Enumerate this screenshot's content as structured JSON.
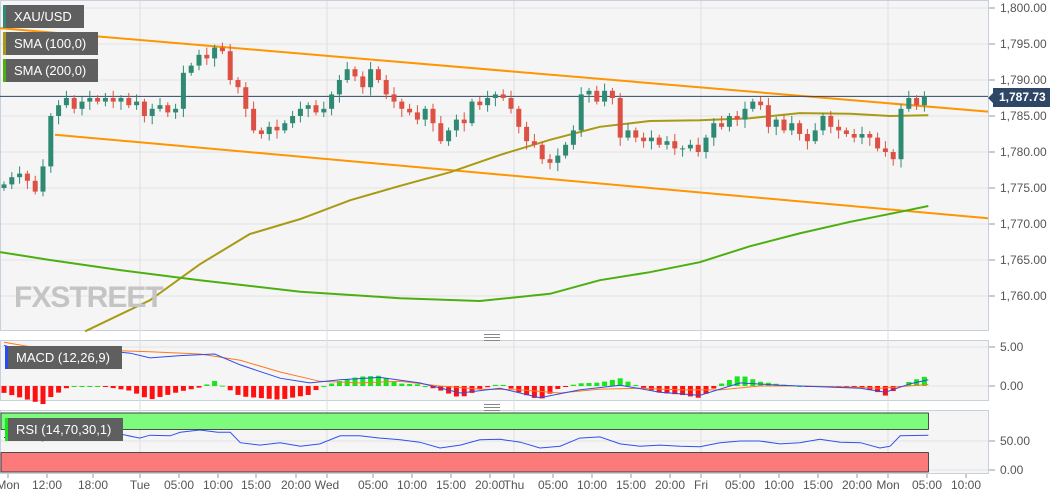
{
  "legend": {
    "symbol": "XAU/USD",
    "sma100": "SMA (100,0)",
    "sma200": "SMA (200,0)",
    "macd": "MACD (12,26,9)",
    "rsi": "RSI (14,70,30,1)"
  },
  "watermark": "FXSTREET",
  "last_price": "1,787.73",
  "colors": {
    "up": "#2f8a73",
    "down": "#dd5145",
    "channel": "#ff9500",
    "sma100": "#a89a14",
    "sma200": "#4caf10",
    "macd": "#2b4bef",
    "signal": "#ff7a1a",
    "hist_up": "#19e619",
    "hist_down": "#ff1010",
    "rsi": "#3050f0",
    "overbought": "#7dfb7d",
    "oversold": "#fb7b7b",
    "price_tag": "#2e4766"
  },
  "price_axis": [
    "1,800.00",
    "1,795.00",
    "1,790.00",
    "1,785.00",
    "1,780.00",
    "1,775.00",
    "1,770.00",
    "1,765.00",
    "1,760.00"
  ],
  "macd_axis": [
    "5.00",
    "0.00"
  ],
  "rsi_axis": [
    "50.00",
    "0.00"
  ],
  "time_axis": [
    "Mon",
    "12:00",
    "18:00",
    "Tue",
    "05:00",
    "10:00",
    "15:00",
    "20:00",
    "Wed",
    "05:00",
    "10:00",
    "15:00",
    "20:00",
    "Thu",
    "05:00",
    "10:00",
    "15:00",
    "20:00",
    "Fri",
    "05:00",
    "10:00",
    "15:00",
    "20:00",
    "Mon",
    "05:00",
    "10:00"
  ],
  "chart_data": {
    "type": "candlestick",
    "price_range": [
      1755,
      1801
    ],
    "closes": [
      1775.5,
      1776.5,
      1777,
      1776,
      1774.5,
      1778,
      1785,
      1786.5,
      1787.5,
      1786,
      1787,
      1787.5,
      1787,
      1787.5,
      1787,
      1787.5,
      1786.5,
      1787,
      1785,
      1786,
      1786.5,
      1785.5,
      1786,
      1791,
      1792,
      1793.5,
      1793,
      1794.5,
      1794,
      1790,
      1789,
      1786,
      1783,
      1782.5,
      1783.5,
      1783,
      1784,
      1785,
      1786,
      1786.5,
      1785.5,
      1786,
      1788,
      1790,
      1791.5,
      1790.5,
      1789,
      1791.5,
      1790,
      1788,
      1787,
      1786,
      1785.5,
      1784.5,
      1786,
      1784,
      1781.5,
      1783,
      1784.5,
      1784,
      1787,
      1786.5,
      1787.5,
      1788,
      1787.5,
      1786,
      1783.5,
      1781.5,
      1781,
      1779,
      1778.5,
      1779.5,
      1781,
      1783,
      1788,
      1788.5,
      1787,
      1788.5,
      1787.5,
      1782,
      1783,
      1782,
      1781.5,
      1782,
      1781,
      1781.5,
      1780.5,
      1780.5,
      1781,
      1780,
      1782,
      1784,
      1783.5,
      1785,
      1784.5,
      1786,
      1787,
      1786.5,
      1783.5,
      1784.5,
      1783,
      1784,
      1782.5,
      1781.5,
      1783,
      1785,
      1783.5,
      1783,
      1782.5,
      1782,
      1782.5,
      1782,
      1780.5,
      1780,
      1779,
      1786,
      1787.5,
      1786.5,
      1787.73
    ],
    "last": 1787.73,
    "channel_upper": [
      1797.2,
      1785.6
    ],
    "channel_lower": [
      1782.4,
      1770.8
    ],
    "sma100": [
      [
        10.4,
        1755.1
      ],
      [
        18.7,
        1759.4
      ],
      [
        25.1,
        1764.4
      ],
      [
        31.5,
        1768.6
      ],
      [
        38,
        1770.7
      ],
      [
        44.4,
        1773.3
      ],
      [
        50.8,
        1775.3
      ],
      [
        57.2,
        1777.2
      ],
      [
        63.6,
        1779.6
      ],
      [
        70,
        1781.7
      ],
      [
        76.4,
        1783.5
      ],
      [
        82.8,
        1784.3
      ],
      [
        89.2,
        1784.4
      ],
      [
        95.6,
        1784.7
      ],
      [
        102,
        1785.4
      ],
      [
        108.5,
        1785.3
      ],
      [
        113.6,
        1785
      ],
      [
        118.5,
        1785.1
      ]
    ],
    "sma200": [
      [
        -0.5,
        1766.1
      ],
      [
        5.9,
        1765
      ],
      [
        14.9,
        1763.6
      ],
      [
        25.1,
        1762.2
      ],
      [
        38,
        1760.6
      ],
      [
        50.8,
        1759.7
      ],
      [
        61,
        1759.3
      ],
      [
        70,
        1760.3
      ],
      [
        76.4,
        1762.2
      ],
      [
        82.8,
        1763.3
      ],
      [
        89.2,
        1764.7
      ],
      [
        95.6,
        1766.9
      ],
      [
        102,
        1768.7
      ],
      [
        108.5,
        1770.3
      ],
      [
        114.9,
        1771.7
      ],
      [
        118.5,
        1772.5
      ]
    ],
    "macd": [
      [
        0,
        5.2
      ],
      [
        5,
        3.7
      ],
      [
        8.5,
        4.6
      ],
      [
        12.3,
        4.6
      ],
      [
        16.2,
        4.2
      ],
      [
        18.7,
        3.6
      ],
      [
        22.6,
        3.9
      ],
      [
        27,
        4.1
      ],
      [
        30.3,
        2.7
      ],
      [
        35.4,
        1.0
      ],
      [
        39.2,
        0.4
      ],
      [
        43.1,
        0.8
      ],
      [
        48.2,
        1.1
      ],
      [
        53.3,
        0.4
      ],
      [
        58.5,
        -0.9
      ],
      [
        63.6,
        -0.3
      ],
      [
        68.7,
        -1.5
      ],
      [
        73.8,
        -0.5
      ],
      [
        79,
        0.1
      ],
      [
        84.1,
        -0.8
      ],
      [
        89.2,
        -1.2
      ],
      [
        94.4,
        0.4
      ],
      [
        99.5,
        0.1
      ],
      [
        104.6,
        -0.1
      ],
      [
        109.8,
        -0.3
      ],
      [
        113,
        -0.8
      ],
      [
        116.2,
        0.3
      ],
      [
        118.5,
        0.8
      ]
    ],
    "signal": [
      [
        0,
        5.6
      ],
      [
        5.9,
        4.6
      ],
      [
        12.3,
        4.6
      ],
      [
        18.7,
        4.4
      ],
      [
        25.1,
        4.1
      ],
      [
        30.3,
        3.3
      ],
      [
        35.4,
        1.8
      ],
      [
        40.5,
        0.6
      ],
      [
        45.6,
        0.4
      ],
      [
        50.8,
        0.6
      ],
      [
        55.9,
        0
      ],
      [
        61,
        -0.4
      ],
      [
        66.2,
        -0.5
      ],
      [
        71.3,
        -0.9
      ],
      [
        76.4,
        -0.4
      ],
      [
        81.5,
        -0.3
      ],
      [
        86.7,
        -0.5
      ],
      [
        91.8,
        -0.5
      ],
      [
        96.9,
        0
      ],
      [
        102,
        0
      ],
      [
        107.2,
        -0.1
      ],
      [
        112.3,
        -0.3
      ],
      [
        118.5,
        0.2
      ]
    ],
    "rsi": [
      [
        0,
        56
      ],
      [
        2.6,
        57
      ],
      [
        5,
        50
      ],
      [
        6.2,
        60
      ],
      [
        7.2,
        65
      ],
      [
        12.3,
        65
      ],
      [
        14.9,
        62
      ],
      [
        17.4,
        55
      ],
      [
        18.7,
        60
      ],
      [
        21.3,
        59
      ],
      [
        22.6,
        65
      ],
      [
        25.1,
        69
      ],
      [
        27.4,
        65
      ],
      [
        29,
        65
      ],
      [
        30.3,
        47
      ],
      [
        32.8,
        43
      ],
      [
        35.4,
        47
      ],
      [
        38,
        41
      ],
      [
        40.5,
        45
      ],
      [
        43.1,
        59
      ],
      [
        45.6,
        59
      ],
      [
        48.2,
        55
      ],
      [
        50.8,
        52
      ],
      [
        53.3,
        48
      ],
      [
        55.9,
        38
      ],
      [
        58.5,
        43
      ],
      [
        61,
        52
      ],
      [
        63.6,
        53
      ],
      [
        66.2,
        48
      ],
      [
        68.7,
        38
      ],
      [
        71.3,
        41
      ],
      [
        73.8,
        55
      ],
      [
        76.4,
        57
      ],
      [
        79,
        45
      ],
      [
        81.5,
        41
      ],
      [
        84.1,
        43
      ],
      [
        86.7,
        41
      ],
      [
        89.2,
        40
      ],
      [
        91.8,
        47
      ],
      [
        94.4,
        50
      ],
      [
        96.9,
        50
      ],
      [
        99.5,
        45
      ],
      [
        102,
        47
      ],
      [
        104.6,
        53
      ],
      [
        107.2,
        48
      ],
      [
        109.8,
        47
      ],
      [
        112.3,
        38
      ],
      [
        113.6,
        41
      ],
      [
        114.9,
        59
      ],
      [
        118.5,
        60
      ]
    ],
    "rsi_levels": [
      70,
      30
    ]
  }
}
